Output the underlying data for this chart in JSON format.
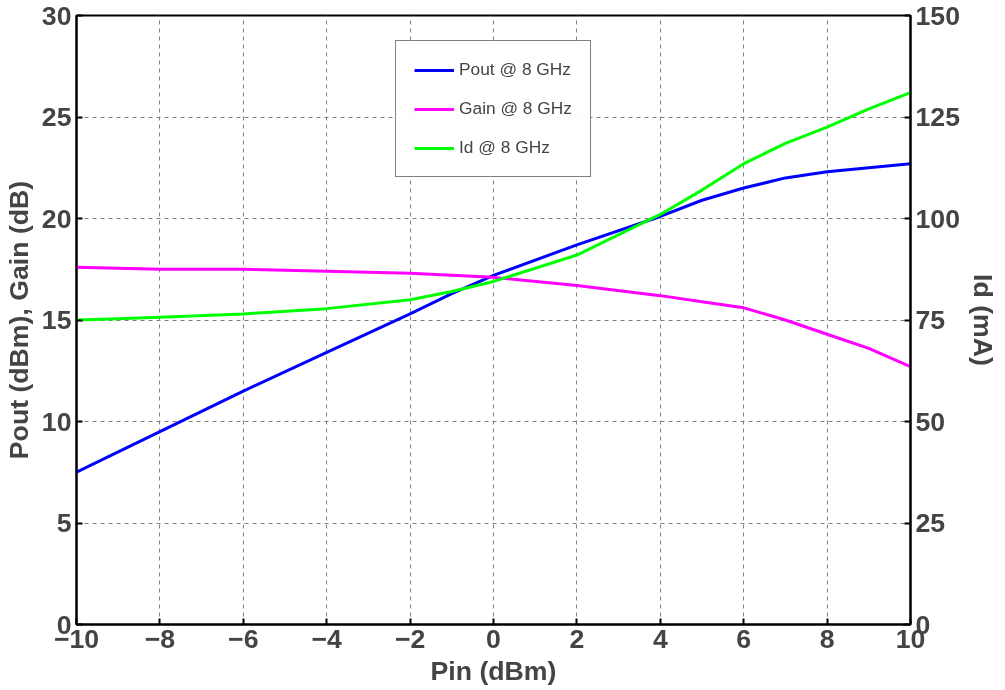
{
  "chart_data": {
    "type": "line",
    "xlabel": "Pin (dBm)",
    "ylabel": "Pout (dBm), Gain (dB)",
    "y2label": "Id (mA)",
    "x": [
      -10,
      -9,
      -8,
      -6,
      -4,
      -2,
      -1,
      0,
      2,
      4,
      5,
      6,
      7,
      8,
      9,
      10
    ],
    "series": [
      {
        "name": "Pout @ 8 GHz",
        "color": "#0000ff",
        "values": [
          7.5,
          8.5,
          9.5,
          11.5,
          13.4,
          15.3,
          16.3,
          17.2,
          18.7,
          20.1,
          20.9,
          21.5,
          22.0,
          22.3,
          22.5,
          22.7
        ]
      },
      {
        "name": "Gain @ 8 GHz",
        "color": "#ff00ff",
        "values": [
          17.6,
          17.55,
          17.5,
          17.5,
          17.4,
          17.3,
          17.2,
          17.1,
          16.7,
          16.2,
          15.9,
          15.6,
          15.0,
          14.3,
          13.6,
          12.7
        ]
      },
      {
        "name": "Id @ 8 GHz",
        "color": "#00ff00",
        "axis": "y2",
        "values": [
          75,
          75.3,
          75.7,
          76.5,
          77.8,
          80,
          82,
          84.5,
          91,
          101,
          107,
          113.5,
          118.5,
          122.5,
          127,
          131
        ]
      }
    ],
    "xlim": [
      -10,
      10
    ],
    "xticks": [
      -10,
      -8,
      -6,
      -4,
      -2,
      0,
      2,
      4,
      6,
      8,
      10
    ],
    "ylim": [
      0,
      30
    ],
    "yticks": [
      0,
      5,
      10,
      15,
      20,
      25,
      30
    ],
    "y2lim": [
      0,
      150
    ],
    "y2ticks": [
      0,
      25,
      50,
      75,
      100,
      125,
      150
    ],
    "grid": true,
    "legend": "top",
    "line_style": "solid",
    "marker": "none"
  }
}
